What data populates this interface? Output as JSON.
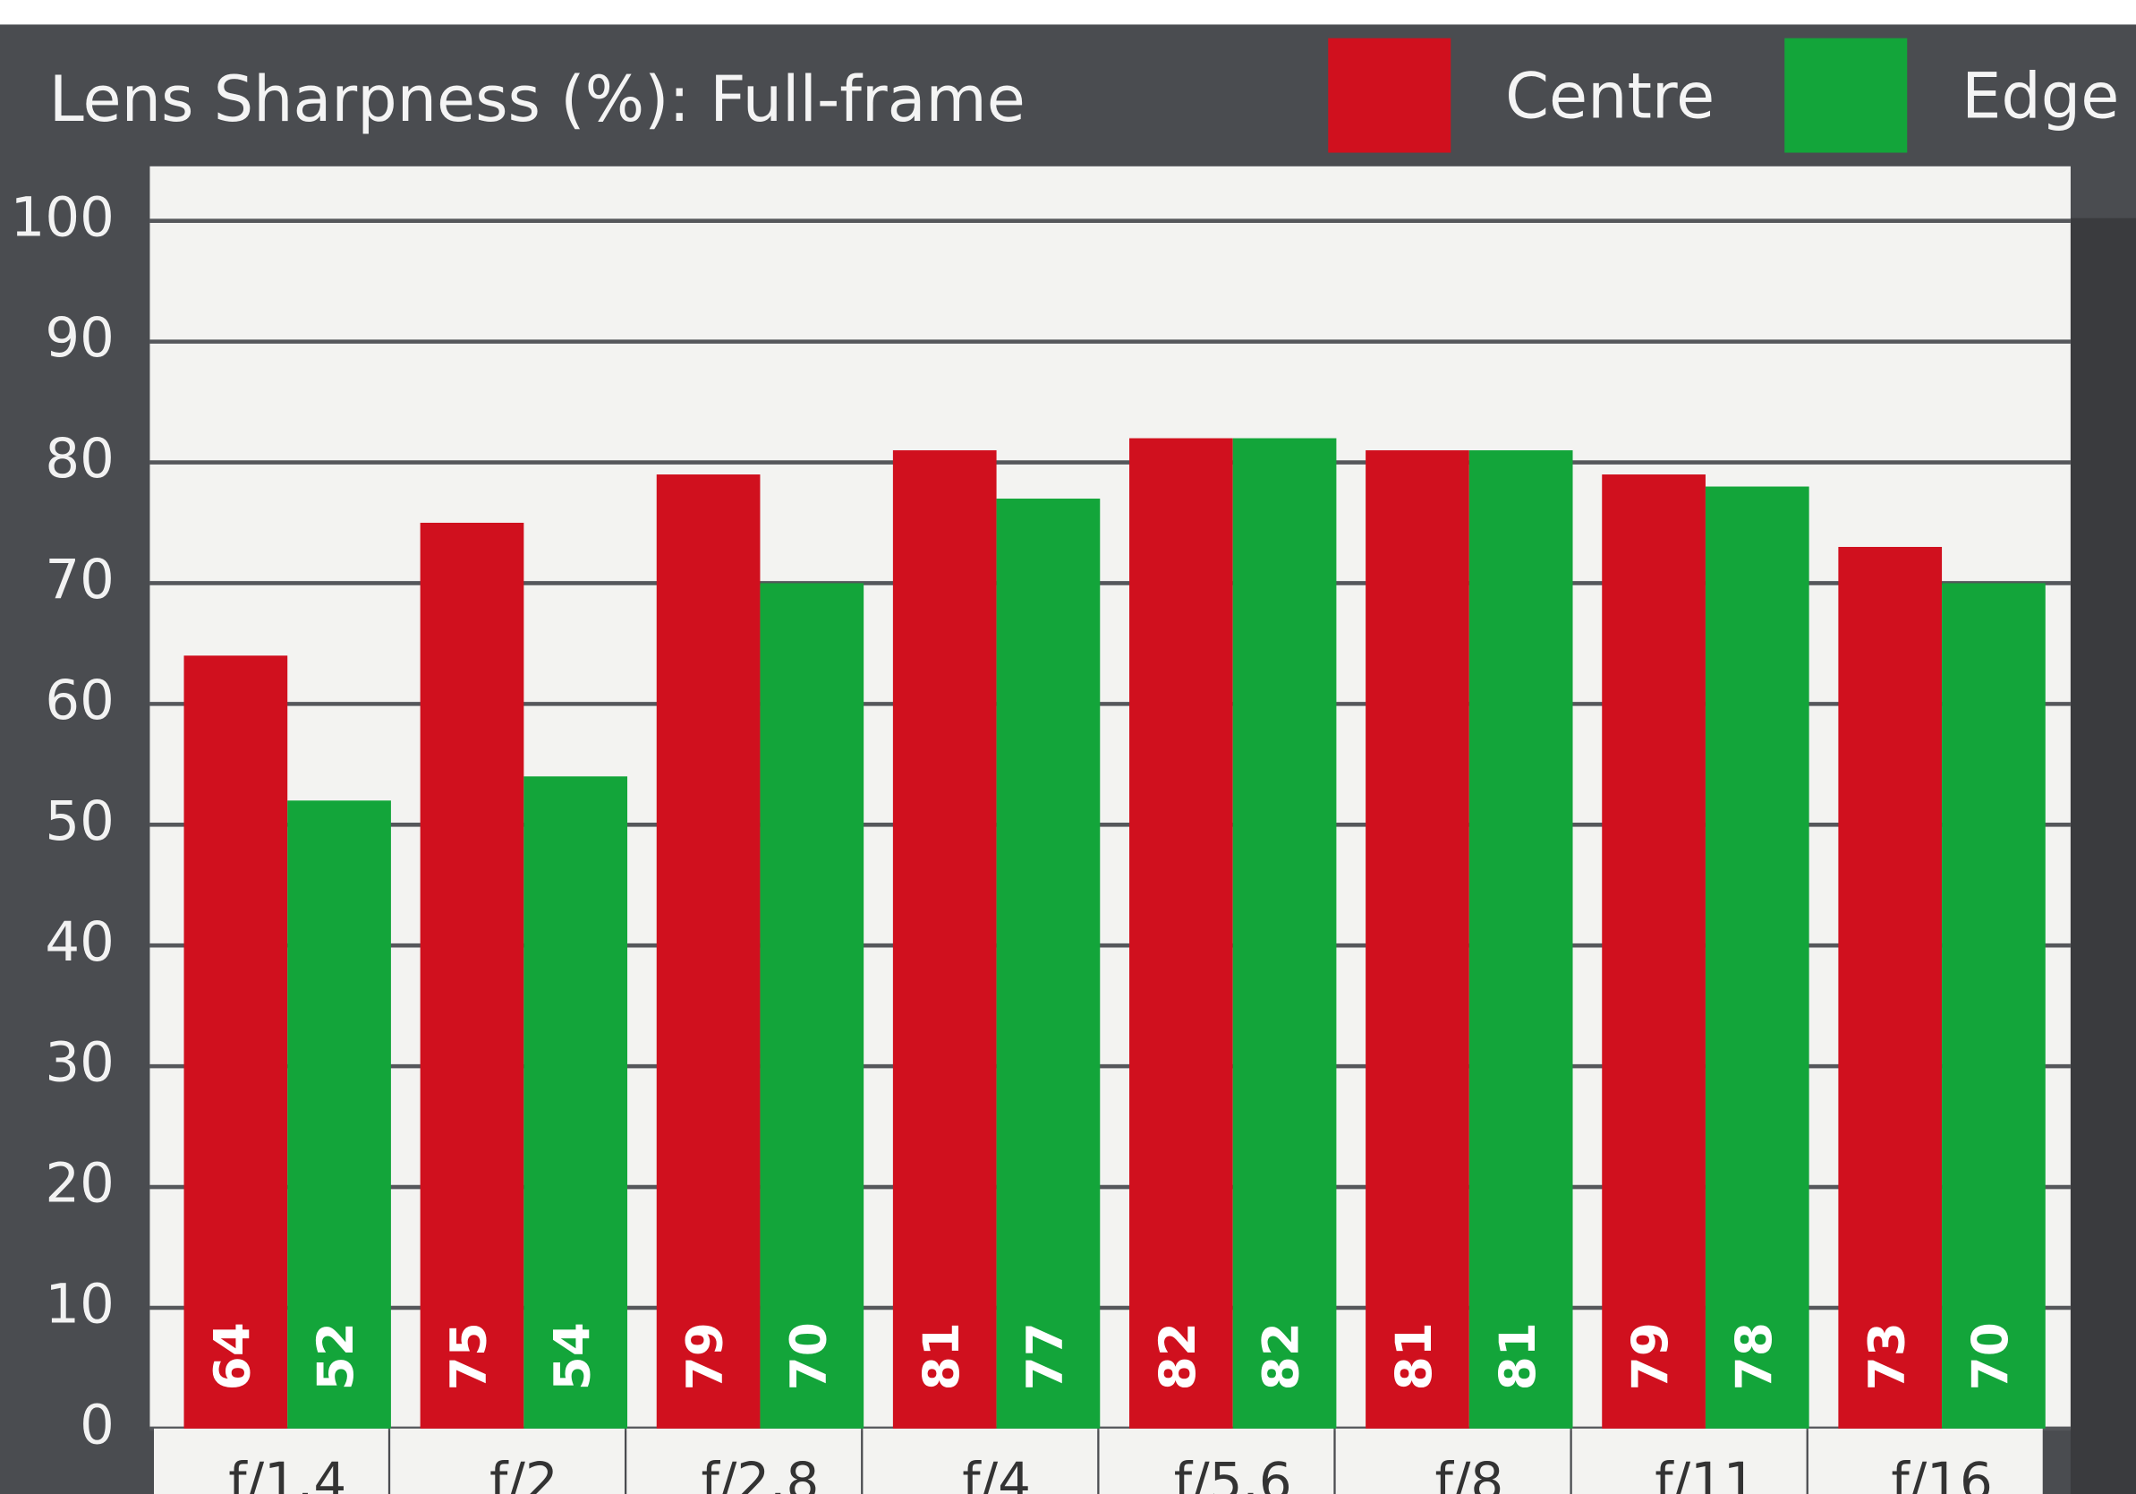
{
  "chart_data": {
    "type": "bar",
    "title": "Lens Sharpness (%): Full-frame",
    "categories": [
      "f/1.4",
      "f/2",
      "f/2.8",
      "f/4",
      "f/5.6",
      "f/8",
      "f/11",
      "f/16"
    ],
    "series": [
      {
        "name": "Centre",
        "color": "#d0101e",
        "values": [
          64,
          75,
          79,
          81,
          82,
          81,
          79,
          73
        ]
      },
      {
        "name": "Edge",
        "color": "#13a53a",
        "values": [
          52,
          54,
          70,
          77,
          82,
          81,
          78,
          70
        ]
      }
    ],
    "ylim": [
      0,
      100
    ],
    "yticks": [
      0,
      10,
      20,
      30,
      40,
      50,
      60,
      70,
      80,
      90,
      100
    ],
    "grid": true
  }
}
